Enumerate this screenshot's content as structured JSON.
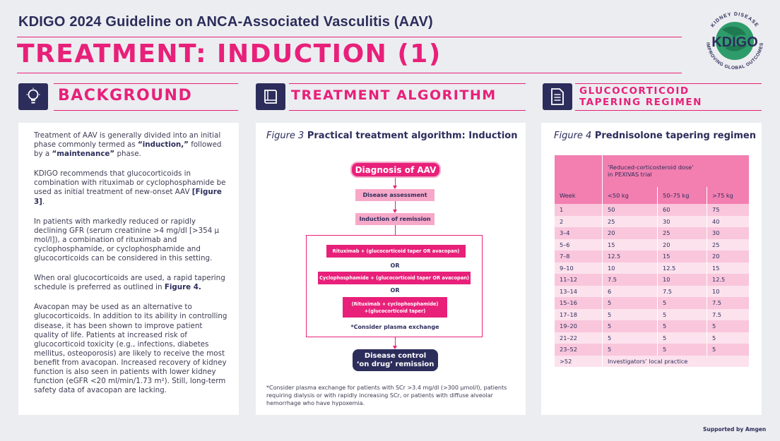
{
  "header": {
    "title": "KDIGO 2024 Guideline on ANCA-Associated Vasculitis (AAV)",
    "subtitle": "TREATMENT: INDUCTION (1)",
    "logo": {
      "text": "KDIGO",
      "ring_text": "KIDNEY DISEASE · IMPROVING GLOBAL OUTCOMES"
    }
  },
  "sections": {
    "background": {
      "title": "BACKGROUND",
      "icon": "lightbulb-icon"
    },
    "algorithm": {
      "title": "TREATMENT ALGORITHM",
      "icon": "book-icon"
    },
    "tapering": {
      "title_line1": "GLUCOCORTICOID",
      "title_line2": "TAPERING REGIMEN",
      "icon": "document-icon"
    }
  },
  "background": {
    "p1_a": "Treatment of AAV is generally divided into an initial phase commonly termed as ",
    "p1_b": "“induction,”",
    "p1_c": " followed by a ",
    "p1_d": "“maintenance”",
    "p1_e": " phase.",
    "p2_a": "KDIGO recommends that glucocorticoids in combination with rituximab or cyclophosphamide be used as initial treatment of new-onset AAV ",
    "p2_b": "[Figure 3]",
    "p2_c": ".",
    "p3": "In patients with markedly reduced or rapidly declining GFR (serum creatinine >4 mg/dl [>354 μ mol/l]), a combination of rituximab and cyclophosphamide, or cyclophosphamide and glucocorticoids can be considered in this setting.",
    "p4_a": "When oral glucocorticoids are used, a rapid tapering schedule is preferred as outlined in ",
    "p4_b": "Figure 4.",
    "p5": "Avacopan may be used as an alternative to glucocorticoids. In addition to its ability in controlling disease, it has been shown to improve patient quality of life. Patients at increased risk of glucocorticoid toxicity (e.g., infections, diabetes mellitus, osteoporosis) are likely to receive the most benefit from avacopan. Increased recovery of kidney function is also seen in patients with lower kidney function (eGFR <20 ml/min/1.73 m²). Still, long-term safety data of avacopan are lacking."
  },
  "figure3": {
    "label": "Figure 3",
    "title": "Practical treatment algorithm: Induction",
    "diagnosis": "Diagnosis of AAV",
    "assessment": "Disease assessment",
    "induction": "Induction of remission",
    "option1": "Rituximab + (glucocorticoid taper OR avacopan)",
    "or": "OR",
    "option2": "Cyclophosphamide + (glucocorticoid taper OR avacopan)",
    "option3_line1": "(Rituximab + cyclophosphamide)",
    "option3_line2": "+(glucocorticoid taper)",
    "plasma_note": "*Consider plasma exchange",
    "outcome_line1": "Disease control",
    "outcome_line2": "‘on drug’ remission",
    "footnote": "*Consider plasma exchange for patients with SCr >3.4 mg/dl (>300 μmol/l), patients requiring dialysis or with rapidly increasing SCr, or patients with diffuse alveolar hemorrhage who have hypoxemia."
  },
  "figure4": {
    "label": "Figure 4",
    "title": "Prednisolone tapering regimen",
    "group_header_line1": "‘Reduced-corticosteroid dose’",
    "group_header_line2": "in PEXIVAS trial",
    "columns": [
      "Week",
      "<50 kg",
      "50–75 kg",
      ">75 kg"
    ],
    "rows": [
      [
        "1",
        "50",
        "60",
        "75"
      ],
      [
        "2",
        "25",
        "30",
        "40"
      ],
      [
        "3–4",
        "20",
        "25",
        "30"
      ],
      [
        "5–6",
        "15",
        "20",
        "25"
      ],
      [
        "7–8",
        "12.5",
        "15",
        "20"
      ],
      [
        "9–10",
        "10",
        "12.5",
        "15"
      ],
      [
        "11–12",
        "7.5",
        "10",
        "12.5"
      ],
      [
        "13–14",
        "6",
        "7.5",
        "10"
      ],
      [
        "15–16",
        "5",
        "5",
        "7.5"
      ],
      [
        "17–18",
        "5",
        "5",
        "7.5"
      ],
      [
        "19–20",
        "5",
        "5",
        "5"
      ],
      [
        "21–22",
        "5",
        "5",
        "5"
      ],
      [
        "23–52",
        "5",
        "5",
        "5"
      ]
    ],
    "last_row": [
      ">52",
      "Investigators’ local practice"
    ]
  },
  "footer": {
    "supported": "Supported by Amgen"
  }
}
